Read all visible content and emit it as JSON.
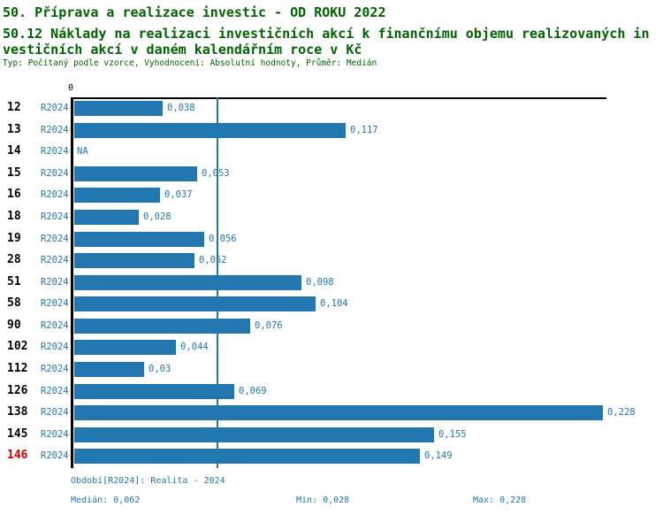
{
  "header": {
    "title": "50. Příprava a realizace investic - OD ROKU 2022",
    "subtitle_line1": "50.12 Náklady na realizaci investičních akcí k finančnímu objemu realizovaných in",
    "subtitle_line2": "vestičních akcí v daném kalendářním roce v Kč",
    "meta": "Typ: Počítaný podle vzorce, Vyhodnocení: Absolutní hodnoty, Průměr: Medián"
  },
  "colors": {
    "header_green": "#006400",
    "bar_blue": "#2277b0",
    "highlight_red": "#d40000",
    "axis_black": "#000000"
  },
  "chart_data": {
    "type": "bar",
    "orientation": "horizontal",
    "title": "50.12 Náklady na realizaci investičních akcí k finančnímu objemu realizovaných investičních akcí v daném kalendářním roce v Kč",
    "x_zero_label": "0",
    "xlim": [
      0,
      0.228
    ],
    "grid": false,
    "categories": [
      "12",
      "13",
      "14",
      "15",
      "16",
      "18",
      "19",
      "28",
      "51",
      "58",
      "90",
      "102",
      "112",
      "126",
      "138",
      "145",
      "146"
    ],
    "series": [
      {
        "name": "R2024",
        "values": [
          0.038,
          0.117,
          null,
          0.053,
          0.037,
          0.028,
          0.056,
          0.052,
          0.098,
          0.104,
          0.076,
          0.044,
          0.03,
          0.069,
          0.228,
          0.155,
          0.149
        ]
      }
    ],
    "value_labels": [
      "0,038",
      "0,117",
      "NA",
      "0,053",
      "0,037",
      "0,028",
      "0,056",
      "0,052",
      "0,098",
      "0,104",
      "0,076",
      "0,044",
      "0,03",
      "0,069",
      "0,228",
      "0,155",
      "0,149"
    ],
    "series_row_label": "R2024",
    "median_value": 0.062,
    "highlighted_category": "146",
    "annotations": {
      "median_line": "vertical blue line at median 0,062"
    }
  },
  "footer": {
    "period": "Období[R2024]: Realita - 2024",
    "median": "Medián: 0,062",
    "min": "Min: 0,028",
    "max": "Max: 0,228"
  }
}
